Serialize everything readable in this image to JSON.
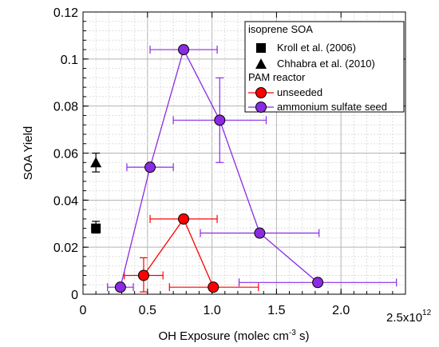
{
  "chart_data": {
    "type": "scatter",
    "title": "",
    "xlabel_parts": [
      "OH Exposure (molec cm",
      "-3",
      " s)"
    ],
    "ylabel": "SOA Yield",
    "xlim": [
      0,
      2500000000000.0
    ],
    "ylim": [
      0,
      0.12
    ],
    "x_ticks": [
      0,
      0.5,
      1.0,
      1.5,
      2.0
    ],
    "x_tick_labels": [
      "0",
      "0.5",
      "1.0",
      "1.5",
      "2.0"
    ],
    "x_multiplier_label": [
      "2.5x10",
      "12"
    ],
    "y_ticks": [
      0,
      0.02,
      0.04,
      0.06,
      0.08,
      0.1,
      0.12
    ],
    "y_tick_labels": [
      "0",
      "0.02",
      "0.04",
      "0.06",
      "0.08",
      "0.1",
      "0.12"
    ],
    "grid": true,
    "legend": {
      "placement": "top-right",
      "group_titles": [
        "isoprene SOA",
        "PAM reactor"
      ],
      "entries": [
        "Kroll et al. (2006)",
        "Chhabra et al. (2010)",
        "unseeded",
        "ammonium sulfate seed"
      ]
    },
    "series": [
      {
        "name": "Kroll et al. (2006)",
        "marker": "square",
        "color": "#000000",
        "connected": false,
        "points": [
          {
            "x": 100000000000.0,
            "y": 0.028,
            "yerr_low": 0.026,
            "yerr_high": 0.031
          }
        ]
      },
      {
        "name": "Chhabra et al. (2010)",
        "marker": "triangle",
        "color": "#000000",
        "connected": false,
        "points": [
          {
            "x": 100000000000.0,
            "y": 0.056,
            "yerr_low": 0.052,
            "yerr_high": 0.06
          }
        ]
      },
      {
        "name": "unseeded",
        "marker": "circle",
        "color": "#ff0000",
        "connected": true,
        "points": [
          {
            "x": 470000000000.0,
            "y": 0.008,
            "xerr_low": 320000000000.0,
            "xerr_high": 620000000000.0,
            "yerr_low": 0.001,
            "yerr_high": 0.0155
          },
          {
            "x": 780000000000.0,
            "y": 0.032,
            "xerr_low": 520000000000.0,
            "xerr_high": 1040000000000.0
          },
          {
            "x": 1010000000000.0,
            "y": 0.003,
            "xerr_low": 670000000000.0,
            "xerr_high": 1360000000000.0
          }
        ]
      },
      {
        "name": "ammonium sulfate seed",
        "marker": "circle",
        "color": "#8a2be2",
        "connected": true,
        "points": [
          {
            "x": 290000000000.0,
            "y": 0.003,
            "xerr_low": 190000000000.0,
            "xerr_high": 390000000000.0
          },
          {
            "x": 520000000000.0,
            "y": 0.054,
            "xerr_low": 340000000000.0,
            "xerr_high": 700000000000.0
          },
          {
            "x": 780000000000.0,
            "y": 0.104,
            "xerr_low": 520000000000.0,
            "xerr_high": 1040000000000.0
          },
          {
            "x": 1060000000000.0,
            "y": 0.074,
            "xerr_low": 700000000000.0,
            "xerr_high": 1420000000000.0,
            "yerr_low": 0.056,
            "yerr_high": 0.092
          },
          {
            "x": 1370000000000.0,
            "y": 0.026,
            "xerr_low": 910000000000.0,
            "xerr_high": 1830000000000.0
          },
          {
            "x": 1820000000000.0,
            "y": 0.005,
            "xerr_low": 1210000000000.0,
            "xerr_high": 2430000000000.0
          }
        ]
      }
    ]
  }
}
